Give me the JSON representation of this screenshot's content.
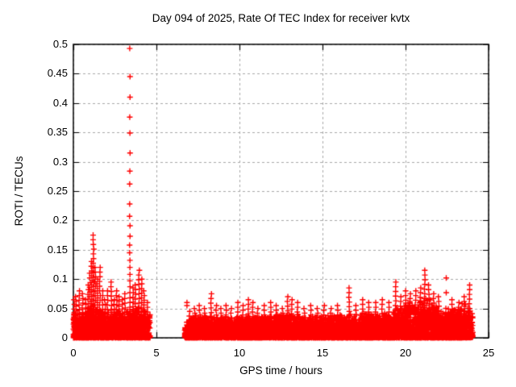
{
  "chart_data": {
    "type": "scatter",
    "title": "Day 094 of 2025, Rate Of TEC Index for receiver kvtx",
    "xlabel": "GPS time / hours",
    "ylabel": "ROTI / TECUs",
    "xlim": [
      0,
      25
    ],
    "ylim": [
      0,
      0.5
    ],
    "x_ticks": [
      0,
      5,
      10,
      15,
      20,
      25
    ],
    "x_tick_labels": [
      "0",
      "5",
      "10",
      "15",
      "20",
      "25"
    ],
    "y_ticks": [
      0,
      0.05,
      0.1,
      0.15,
      0.2,
      0.25,
      0.3,
      0.35,
      0.4,
      0.45,
      0.5
    ],
    "y_tick_labels": [
      "0",
      "0.05",
      "0.1",
      "0.15",
      "0.2",
      "0.25",
      "0.3",
      "0.35",
      "0.4",
      "0.45",
      "0.5"
    ],
    "grid": {
      "show": true,
      "style": "dashed",
      "color": "#a8a8a8"
    },
    "axis_color": "#000000",
    "background": "#ffffff",
    "legend": {
      "show": false
    },
    "series": [
      {
        "name": "ROTI",
        "marker": "plus",
        "color": "#ff0000",
        "marker_size": 7
      }
    ],
    "data_gap_hours": [
      4.62,
      6.7
    ],
    "data_end_hour": 24.05,
    "big_spike": {
      "t": 3.4,
      "values": [
        0.493,
        0.445,
        0.41,
        0.376,
        0.349,
        0.315,
        0.284,
        0.262,
        0.228,
        0.207,
        0.191,
        0.173,
        0.158,
        0.145,
        0.132,
        0.12,
        0.108,
        0.097,
        0.087,
        0.077,
        0.068,
        0.06,
        0.052,
        0.045,
        0.038,
        0.032
      ]
    },
    "spike_step": 0.008,
    "spike_columns": [
      [
        0.05,
        0.065
      ],
      [
        0.15,
        0.07
      ],
      [
        0.35,
        0.08
      ],
      [
        0.55,
        0.075
      ],
      [
        0.75,
        0.065
      ],
      [
        0.9,
        0.09
      ],
      [
        1.0,
        0.11
      ],
      [
        1.1,
        0.13
      ],
      [
        1.21,
        0.175
      ],
      [
        1.32,
        0.12
      ],
      [
        1.45,
        0.1
      ],
      [
        1.6,
        0.12
      ],
      [
        1.75,
        0.08
      ],
      [
        1.9,
        0.065
      ],
      [
        2.05,
        0.08
      ],
      [
        2.28,
        0.095
      ],
      [
        2.45,
        0.065
      ],
      [
        2.6,
        0.08
      ],
      [
        2.75,
        0.07
      ],
      [
        2.95,
        0.065
      ],
      [
        3.1,
        0.075
      ],
      [
        3.6,
        0.085
      ],
      [
        3.74,
        0.09
      ],
      [
        3.95,
        0.115
      ],
      [
        4.1,
        0.1
      ],
      [
        4.25,
        0.08
      ],
      [
        4.45,
        0.06
      ],
      [
        7.0,
        0.045
      ],
      [
        7.3,
        0.05
      ],
      [
        7.6,
        0.055
      ],
      [
        7.9,
        0.05
      ],
      [
        8.3,
        0.075
      ],
      [
        8.6,
        0.055
      ],
      [
        8.9,
        0.05
      ],
      [
        9.2,
        0.055
      ],
      [
        9.5,
        0.05
      ],
      [
        9.9,
        0.06
      ],
      [
        10.2,
        0.055
      ],
      [
        10.55,
        0.065
      ],
      [
        10.8,
        0.06
      ],
      [
        11.1,
        0.05
      ],
      [
        11.5,
        0.055
      ],
      [
        11.9,
        0.06
      ],
      [
        12.2,
        0.055
      ],
      [
        12.6,
        0.05
      ],
      [
        12.9,
        0.07
      ],
      [
        13.15,
        0.065
      ],
      [
        13.5,
        0.06
      ],
      [
        13.9,
        0.05
      ],
      [
        14.3,
        0.055
      ],
      [
        14.7,
        0.05
      ],
      [
        15.1,
        0.055
      ],
      [
        15.5,
        0.05
      ],
      [
        15.9,
        0.055
      ],
      [
        16.6,
        0.085
      ],
      [
        17.0,
        0.055
      ],
      [
        17.4,
        0.065
      ],
      [
        17.8,
        0.06
      ],
      [
        18.2,
        0.06
      ],
      [
        18.6,
        0.065
      ],
      [
        19.0,
        0.06
      ],
      [
        19.4,
        0.095
      ],
      [
        19.7,
        0.07
      ],
      [
        20.0,
        0.08
      ],
      [
        20.3,
        0.075
      ],
      [
        20.6,
        0.08
      ],
      [
        20.9,
        0.085
      ],
      [
        21.15,
        0.115
      ],
      [
        21.4,
        0.09
      ],
      [
        21.7,
        0.075
      ],
      [
        22.0,
        0.07
      ],
      [
        22.8,
        0.065
      ],
      [
        23.2,
        0.06
      ],
      [
        23.55,
        0.07
      ],
      [
        23.85,
        0.09
      ]
    ],
    "isolated_points": [
      [
        6.84,
        0.06
      ],
      [
        6.84,
        0.055
      ],
      [
        22.45,
        0.102
      ],
      [
        22.45,
        0.077
      ]
    ],
    "noise_segments": [
      {
        "t0": 0.0,
        "t1": 4.62,
        "points_per_hour": 300,
        "pow": 1.6,
        "envelope": [
          [
            0,
            0.035
          ],
          [
            0.5,
            0.04
          ],
          [
            1,
            0.045
          ],
          [
            1.5,
            0.042
          ],
          [
            2,
            0.04
          ],
          [
            2.5,
            0.042
          ],
          [
            3,
            0.04
          ],
          [
            3.5,
            0.045
          ],
          [
            4.2,
            0.042
          ],
          [
            4.62,
            0.034
          ]
        ]
      },
      {
        "t0": 6.7,
        "t1": 24.05,
        "points_per_hour": 300,
        "pow": 1.6,
        "envelope": [
          [
            6.7,
            0.02
          ],
          [
            7.2,
            0.03
          ],
          [
            8,
            0.032
          ],
          [
            9,
            0.03
          ],
          [
            10,
            0.032
          ],
          [
            11,
            0.03
          ],
          [
            12,
            0.033
          ],
          [
            13,
            0.036
          ],
          [
            14,
            0.031
          ],
          [
            15,
            0.032
          ],
          [
            16,
            0.033
          ],
          [
            17,
            0.034
          ],
          [
            18,
            0.035
          ],
          [
            19,
            0.038
          ],
          [
            19.5,
            0.045
          ],
          [
            20,
            0.05
          ],
          [
            20.6,
            0.055
          ],
          [
            21.2,
            0.06
          ],
          [
            21.8,
            0.05
          ],
          [
            22.3,
            0.042
          ],
          [
            23,
            0.045
          ],
          [
            23.6,
            0.05
          ],
          [
            24.05,
            0.042
          ]
        ]
      }
    ]
  }
}
